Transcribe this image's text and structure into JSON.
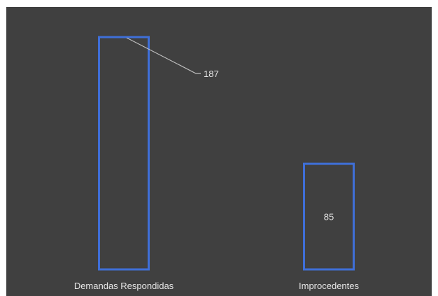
{
  "colors": {
    "background": "#404040",
    "bar_outline": "#3f6fd8",
    "text": "#e6e6e6"
  },
  "chart_data": {
    "type": "bar",
    "categories": [
      "Demandas Respondidas",
      "Improcedentes"
    ],
    "values": [
      187,
      85
    ],
    "data_labels": [
      "187",
      "85"
    ],
    "ylim": [
      0,
      187
    ],
    "grid": false,
    "legend": "none",
    "bar_style": "outline"
  }
}
